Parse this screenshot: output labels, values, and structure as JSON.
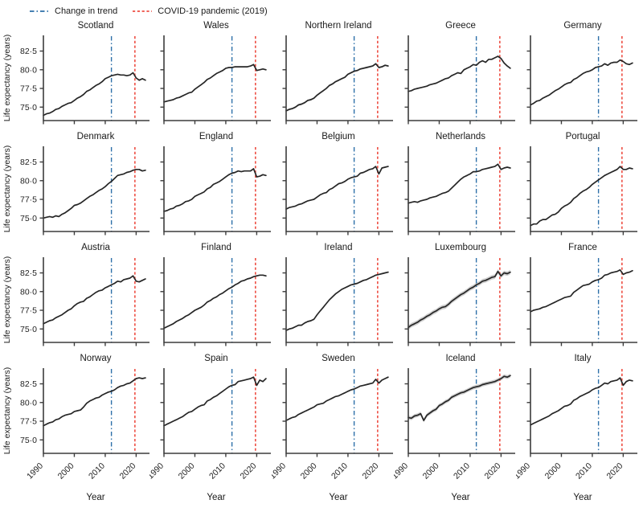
{
  "figure": {
    "legend": [
      {
        "label": "Change in trend",
        "color": "#2d6fa8",
        "style": "dashdot"
      },
      {
        "label": "COVID-19 pandemic (2019)",
        "color": "#ee4f44",
        "style": "dashed"
      }
    ]
  },
  "chart_data": {
    "type": "line",
    "layout": "small-multiples 4 rows x 5 cols",
    "title": "",
    "xlabel": "Year",
    "ylabel": "Life expectancy (years)",
    "x_start_year": 1990,
    "x_end_year": 2023,
    "xlim": [
      1990,
      2023.8
    ],
    "ylim": [
      73.2,
      84.6
    ],
    "xticks": [
      1990,
      2000,
      2010,
      2020
    ],
    "yticks": [
      75.0,
      77.5,
      80.0,
      82.5
    ],
    "ytick_labels": [
      "75·0",
      "77·5",
      "80·0",
      "82·5"
    ],
    "grid": false,
    "legend_position": "top-left",
    "line_color": "#262626",
    "band_color": "#a8a8a8",
    "axis_color": "#3c3c3c",
    "trend_line_color": "#2d6fa8",
    "covid_line_color": "#ee4f44",
    "covid_line_year": 2019.6,
    "panels": [
      {
        "name": "Scotland",
        "trend_break_year": 2012,
        "ci_band": 0,
        "values": [
          73.9,
          74.1,
          74.2,
          74.4,
          74.7,
          74.8,
          75.1,
          75.3,
          75.5,
          75.6,
          75.9,
          76.2,
          76.4,
          76.7,
          77.1,
          77.3,
          77.6,
          77.9,
          78.1,
          78.4,
          78.8,
          79.0,
          79.2,
          79.3,
          79.4,
          79.3,
          79.3,
          79.2,
          79.3,
          79.6,
          78.9,
          78.6,
          78.8,
          78.6
        ]
      },
      {
        "name": "Wales",
        "trend_break_year": 2012,
        "ci_band": 0,
        "values": [
          75.7,
          75.8,
          75.9,
          76.0,
          76.2,
          76.3,
          76.5,
          76.7,
          76.9,
          77.0,
          77.4,
          77.7,
          78.0,
          78.3,
          78.7,
          78.9,
          79.2,
          79.5,
          79.7,
          79.9,
          80.2,
          80.3,
          80.3,
          80.4,
          80.4,
          80.4,
          80.4,
          80.4,
          80.5,
          80.7,
          79.9,
          80.0,
          80.1,
          80.0
        ]
      },
      {
        "name": "Northern Ireland",
        "trend_break_year": 2012,
        "ci_band": 0.12,
        "values": [
          74.5,
          74.7,
          74.8,
          75.0,
          75.3,
          75.4,
          75.6,
          75.9,
          76.0,
          76.2,
          76.6,
          76.9,
          77.2,
          77.5,
          77.9,
          78.1,
          78.4,
          78.6,
          78.8,
          79.0,
          79.4,
          79.6,
          79.8,
          79.9,
          80.1,
          80.2,
          80.3,
          80.4,
          80.5,
          80.8,
          80.3,
          80.4,
          80.6,
          80.5
        ]
      },
      {
        "name": "Greece",
        "trend_break_year": 2012,
        "ci_band": 0,
        "values": [
          77.1,
          77.2,
          77.4,
          77.5,
          77.6,
          77.7,
          77.8,
          78.0,
          78.1,
          78.2,
          78.4,
          78.6,
          78.8,
          78.9,
          79.2,
          79.4,
          79.6,
          79.5,
          80.0,
          80.2,
          80.4,
          80.7,
          80.6,
          81.0,
          81.2,
          81.0,
          81.4,
          81.4,
          81.6,
          81.8,
          81.5,
          80.9,
          80.5,
          80.2
        ]
      },
      {
        "name": "Germany",
        "trend_break_year": 2012,
        "ci_band": 0,
        "values": [
          75.3,
          75.5,
          75.8,
          75.9,
          76.2,
          76.4,
          76.6,
          76.9,
          77.2,
          77.4,
          77.7,
          78.0,
          78.2,
          78.3,
          78.7,
          78.9,
          79.2,
          79.5,
          79.7,
          79.8,
          80.0,
          80.3,
          80.4,
          80.5,
          80.8,
          80.6,
          80.9,
          81.0,
          81.0,
          81.3,
          81.1,
          80.8,
          80.7,
          80.9
        ]
      },
      {
        "name": "Denmark",
        "trend_break_year": 2012,
        "ci_band": 0,
        "values": [
          75.0,
          75.1,
          75.2,
          75.1,
          75.3,
          75.2,
          75.5,
          75.7,
          76.0,
          76.3,
          76.7,
          76.8,
          77.0,
          77.3,
          77.6,
          77.9,
          78.1,
          78.4,
          78.7,
          78.9,
          79.2,
          79.6,
          79.9,
          80.3,
          80.7,
          80.8,
          80.9,
          81.1,
          81.2,
          81.4,
          81.5,
          81.5,
          81.3,
          81.4
        ]
      },
      {
        "name": "England",
        "trend_break_year": 2012,
        "ci_band": 0,
        "values": [
          75.9,
          76.0,
          76.2,
          76.3,
          76.6,
          76.7,
          76.9,
          77.2,
          77.3,
          77.5,
          77.9,
          78.1,
          78.3,
          78.5,
          78.9,
          79.1,
          79.5,
          79.7,
          79.9,
          80.2,
          80.5,
          80.8,
          81.0,
          81.1,
          81.3,
          81.2,
          81.3,
          81.3,
          81.3,
          81.6,
          80.5,
          80.6,
          80.8,
          80.7
        ]
      },
      {
        "name": "Belgium",
        "trend_break_year": 2012,
        "ci_band": 0,
        "values": [
          76.2,
          76.4,
          76.5,
          76.6,
          76.8,
          76.9,
          77.1,
          77.3,
          77.4,
          77.5,
          77.8,
          78.1,
          78.3,
          78.4,
          78.8,
          79.0,
          79.3,
          79.6,
          79.7,
          79.9,
          80.2,
          80.4,
          80.5,
          80.6,
          81.0,
          81.1,
          81.3,
          81.5,
          81.6,
          81.9,
          80.9,
          81.7,
          81.8,
          81.9
        ]
      },
      {
        "name": "Netherlands",
        "trend_break_year": 2012,
        "ci_band": 0,
        "values": [
          77.0,
          77.1,
          77.2,
          77.1,
          77.3,
          77.4,
          77.5,
          77.7,
          77.8,
          77.9,
          78.1,
          78.3,
          78.4,
          78.6,
          79.0,
          79.4,
          79.8,
          80.2,
          80.5,
          80.7,
          80.9,
          81.2,
          81.2,
          81.3,
          81.5,
          81.6,
          81.7,
          81.8,
          81.9,
          82.2,
          81.5,
          81.7,
          81.8,
          81.7
        ]
      },
      {
        "name": "Portugal",
        "trend_break_year": 2012,
        "ci_band": 0,
        "values": [
          74.0,
          74.2,
          74.2,
          74.6,
          74.8,
          74.8,
          75.1,
          75.4,
          75.5,
          75.8,
          76.3,
          76.6,
          76.8,
          77.1,
          77.6,
          77.9,
          78.3,
          78.6,
          78.8,
          79.1,
          79.5,
          79.8,
          80.1,
          80.4,
          80.7,
          80.9,
          81.1,
          81.3,
          81.5,
          81.9,
          81.5,
          81.5,
          81.7,
          81.6
        ]
      },
      {
        "name": "Austria",
        "trend_break_year": 2012,
        "ci_band": 0,
        "values": [
          75.7,
          75.9,
          76.1,
          76.2,
          76.5,
          76.7,
          76.9,
          77.2,
          77.5,
          77.7,
          78.1,
          78.4,
          78.6,
          78.7,
          79.1,
          79.3,
          79.6,
          79.9,
          80.1,
          80.2,
          80.5,
          80.7,
          80.9,
          81.1,
          81.4,
          81.3,
          81.6,
          81.7,
          81.8,
          82.1,
          81.4,
          81.3,
          81.5,
          81.7
        ]
      },
      {
        "name": "Finland",
        "trend_break_year": 2012,
        "ci_band": 0.07,
        "values": [
          75.1,
          75.3,
          75.5,
          75.7,
          76.0,
          76.2,
          76.4,
          76.7,
          76.9,
          77.2,
          77.5,
          77.7,
          77.9,
          78.2,
          78.6,
          78.8,
          79.1,
          79.3,
          79.6,
          79.8,
          80.1,
          80.4,
          80.6,
          80.9,
          81.1,
          81.4,
          81.5,
          81.7,
          81.8,
          82.0,
          82.1,
          82.2,
          82.2,
          82.1
        ]
      },
      {
        "name": "Ireland",
        "trend_break_year": 2012,
        "ci_band": 0.09,
        "values": [
          74.8,
          75.0,
          75.1,
          75.3,
          75.5,
          75.5,
          75.8,
          76.0,
          76.1,
          76.3,
          76.9,
          77.4,
          77.9,
          78.4,
          78.9,
          79.3,
          79.7,
          80.0,
          80.3,
          80.5,
          80.7,
          80.9,
          81.0,
          81.1,
          81.3,
          81.5,
          81.6,
          81.8,
          82.0,
          82.2,
          82.3,
          82.4,
          82.5,
          82.6
        ]
      },
      {
        "name": "Luxembourg",
        "trend_break_year": 2012,
        "ci_band": 0.3,
        "values": [
          75.2,
          75.5,
          75.7,
          75.9,
          76.2,
          76.4,
          76.7,
          76.9,
          77.2,
          77.4,
          77.7,
          77.9,
          78.0,
          78.3,
          78.7,
          79.0,
          79.3,
          79.6,
          79.8,
          80.1,
          80.4,
          80.6,
          80.9,
          81.1,
          81.4,
          81.5,
          81.7,
          81.9,
          82.0,
          82.7,
          82.1,
          82.5,
          82.4,
          82.6
        ]
      },
      {
        "name": "France",
        "trend_break_year": 2012,
        "ci_band": 0,
        "values": [
          77.3,
          77.5,
          77.6,
          77.7,
          77.9,
          78.0,
          78.2,
          78.4,
          78.6,
          78.8,
          79.0,
          79.2,
          79.3,
          79.4,
          79.9,
          80.2,
          80.5,
          80.8,
          80.9,
          81.0,
          81.3,
          81.5,
          81.6,
          81.8,
          82.2,
          82.3,
          82.5,
          82.6,
          82.7,
          82.9,
          82.3,
          82.5,
          82.6,
          82.8
        ]
      },
      {
        "name": "Norway",
        "trend_break_year": 2012,
        "ci_band": 0,
        "values": [
          76.9,
          77.1,
          77.3,
          77.4,
          77.7,
          77.8,
          78.1,
          78.3,
          78.4,
          78.5,
          78.8,
          78.9,
          79.0,
          79.4,
          79.9,
          80.2,
          80.4,
          80.6,
          80.7,
          81.0,
          81.2,
          81.4,
          81.5,
          81.7,
          82.0,
          82.2,
          82.3,
          82.5,
          82.6,
          82.9,
          83.2,
          83.3,
          83.2,
          83.3
        ]
      },
      {
        "name": "Spain",
        "trend_break_year": 2012,
        "ci_band": 0,
        "values": [
          76.9,
          77.1,
          77.3,
          77.5,
          77.7,
          77.9,
          78.1,
          78.4,
          78.7,
          78.8,
          79.1,
          79.4,
          79.6,
          79.7,
          80.2,
          80.4,
          80.7,
          80.9,
          81.2,
          81.5,
          81.8,
          82.1,
          82.3,
          82.4,
          82.8,
          82.9,
          83.0,
          83.1,
          83.2,
          83.4,
          82.3,
          83.0,
          82.8,
          83.2
        ]
      },
      {
        "name": "Sweden",
        "trend_break_year": 2012,
        "ci_band": 0,
        "values": [
          77.6,
          77.8,
          78.0,
          78.1,
          78.4,
          78.6,
          78.8,
          79.0,
          79.2,
          79.4,
          79.7,
          79.8,
          79.9,
          80.2,
          80.4,
          80.6,
          80.8,
          80.9,
          81.1,
          81.3,
          81.5,
          81.7,
          81.8,
          82.0,
          82.2,
          82.3,
          82.4,
          82.5,
          82.6,
          83.1,
          82.6,
          83.0,
          83.2,
          83.4
        ]
      },
      {
        "name": "Iceland",
        "trend_break_year": 2012,
        "ci_band": 0.26,
        "values": [
          78.0,
          77.9,
          78.2,
          78.3,
          78.5,
          77.6,
          78.3,
          78.6,
          78.9,
          79.1,
          79.6,
          79.8,
          80.1,
          80.3,
          80.7,
          80.9,
          81.1,
          81.3,
          81.4,
          81.6,
          81.8,
          82.0,
          82.1,
          82.2,
          82.4,
          82.5,
          82.6,
          82.7,
          82.8,
          83.0,
          83.2,
          83.5,
          83.4,
          83.6
        ]
      },
      {
        "name": "Italy",
        "trend_break_year": 2012,
        "ci_band": 0,
        "values": [
          77.0,
          77.2,
          77.4,
          77.6,
          77.8,
          78.0,
          78.2,
          78.5,
          78.7,
          78.9,
          79.2,
          79.5,
          79.6,
          79.8,
          80.3,
          80.5,
          80.8,
          81.0,
          81.2,
          81.4,
          81.7,
          81.9,
          82.0,
          82.3,
          82.6,
          82.5,
          82.8,
          82.9,
          83.0,
          83.3,
          82.3,
          82.8,
          83.0,
          82.9
        ]
      }
    ]
  }
}
